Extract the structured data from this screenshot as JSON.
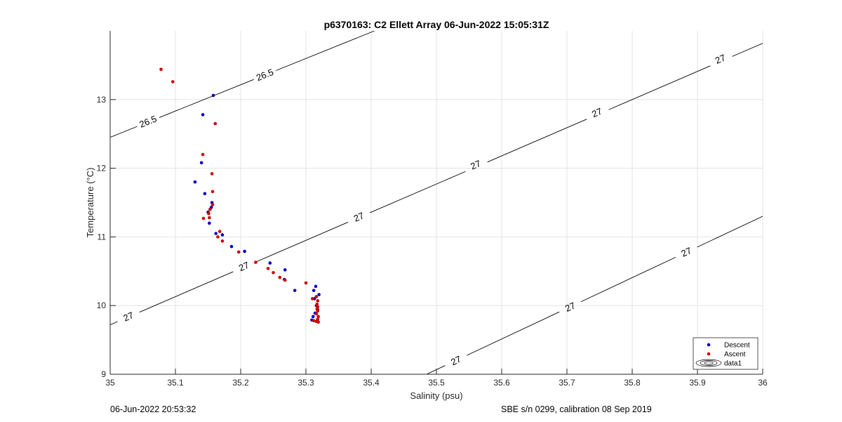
{
  "chart_data": {
    "type": "scatter",
    "title": "p6370163: C2 Ellett Array 06-Jun-2022 15:05:31Z",
    "xlabel": "Salinity (psu)",
    "ylabel": "Temperature (°C)",
    "xlim": [
      35,
      36
    ],
    "ylim": [
      9,
      14
    ],
    "xticks": [
      "35",
      "35.1",
      "35.2",
      "35.3",
      "35.4",
      "35.5",
      "35.6",
      "35.7",
      "35.8",
      "35.9",
      "36"
    ],
    "yticks": [
      "9",
      "10",
      "11",
      "12",
      "13"
    ],
    "grid": true,
    "legend_position": "bottom-right",
    "legend": [
      "Descent",
      "Ascent",
      "data1"
    ],
    "series": [
      {
        "name": "Descent",
        "color": "#0000c0",
        "points": [
          [
            35.158,
            13.06
          ],
          [
            35.142,
            12.78
          ],
          [
            35.14,
            12.08
          ],
          [
            35.13,
            11.8
          ],
          [
            35.145,
            11.63
          ],
          [
            35.156,
            11.5
          ],
          [
            35.155,
            11.43
          ],
          [
            35.15,
            11.36
          ],
          [
            35.152,
            11.2
          ],
          [
            35.162,
            11.05
          ],
          [
            35.172,
            11.03
          ],
          [
            35.186,
            10.86
          ],
          [
            35.206,
            10.79
          ],
          [
            35.245,
            10.62
          ],
          [
            35.268,
            10.52
          ],
          [
            35.267,
            10.38
          ],
          [
            35.283,
            10.22
          ],
          [
            35.315,
            10.28
          ],
          [
            35.312,
            10.22
          ],
          [
            35.32,
            10.16
          ],
          [
            35.313,
            10.1
          ],
          [
            35.316,
            10.0
          ],
          [
            35.318,
            9.94
          ],
          [
            35.314,
            9.89
          ],
          [
            35.311,
            9.84
          ],
          [
            35.309,
            9.79
          ]
        ]
      },
      {
        "name": "Ascent",
        "color": "#d00000",
        "points": [
          [
            35.078,
            13.44
          ],
          [
            35.096,
            13.26
          ],
          [
            35.161,
            12.65
          ],
          [
            35.142,
            12.2
          ],
          [
            35.156,
            11.92
          ],
          [
            35.157,
            11.66
          ],
          [
            35.157,
            11.47
          ],
          [
            35.153,
            11.4
          ],
          [
            35.151,
            11.34
          ],
          [
            35.152,
            11.28
          ],
          [
            35.143,
            11.27
          ],
          [
            35.168,
            11.08
          ],
          [
            35.165,
            11.0
          ],
          [
            35.172,
            10.94
          ],
          [
            35.197,
            10.78
          ],
          [
            35.223,
            10.63
          ],
          [
            35.242,
            10.54
          ],
          [
            35.25,
            10.48
          ],
          [
            35.26,
            10.41
          ],
          [
            35.268,
            10.37
          ],
          [
            35.3,
            10.33
          ],
          [
            35.31,
            10.1
          ],
          [
            35.316,
            10.13
          ],
          [
            35.318,
            10.07
          ],
          [
            35.317,
            10.02
          ],
          [
            35.318,
            9.98
          ],
          [
            35.317,
            9.95
          ],
          [
            35.318,
            9.92
          ],
          [
            35.316,
            9.88
          ],
          [
            35.319,
            9.84
          ],
          [
            35.318,
            9.8
          ],
          [
            35.312,
            9.78
          ],
          [
            35.316,
            9.77
          ],
          [
            35.319,
            9.76
          ]
        ]
      }
    ],
    "contours": [
      {
        "label": "26.5",
        "p1": [
          35.0,
          12.45
        ],
        "p2": [
          35.405,
          14.0
        ],
        "labels": [
          [
            35.058,
            12.68
          ],
          [
            35.237,
            13.36
          ]
        ]
      },
      {
        "label": "27",
        "p1": [
          35.0,
          9.72
        ],
        "p2": [
          36.0,
          13.82
        ],
        "labels": [
          [
            35.028,
            9.84
          ],
          [
            35.205,
            10.57
          ],
          [
            35.381,
            11.29
          ],
          [
            35.56,
            12.05
          ],
          [
            35.746,
            12.81
          ],
          [
            35.935,
            13.59
          ]
        ]
      },
      {
        "label": "27",
        "p1": [
          35.485,
          9.0
        ],
        "p2": [
          36.0,
          11.3
        ],
        "labels": [
          [
            35.53,
            9.2
          ],
          [
            35.705,
            9.98
          ],
          [
            35.883,
            10.78
          ]
        ]
      }
    ]
  },
  "footer": {
    "left": "06-Jun-2022 20:53:32",
    "right": "SBE s/n 0299, calibration 08 Sep 2019"
  }
}
